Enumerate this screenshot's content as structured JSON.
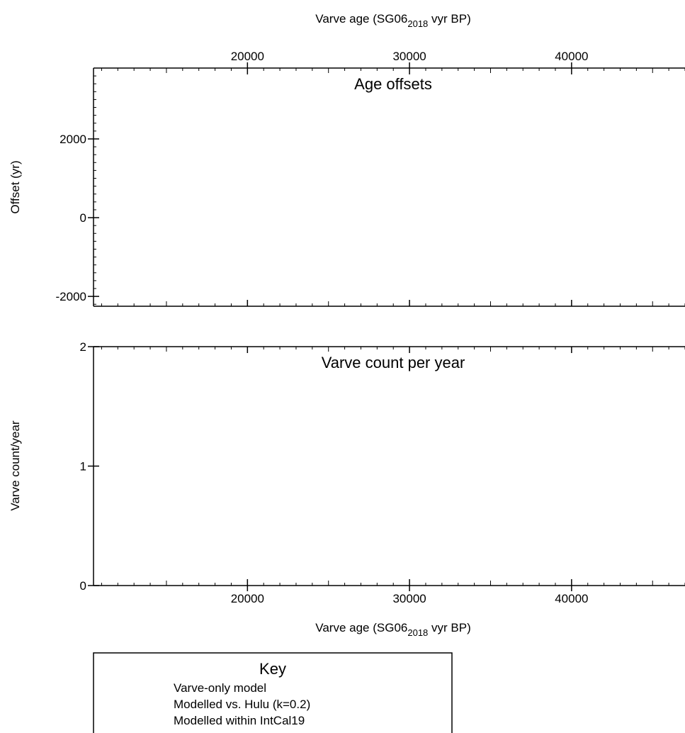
{
  "chart_data": [
    {
      "type": "line",
      "title": "Age offsets",
      "xlabel": "Varve age (SG06",
      "xlabel_sub": "2018",
      "xlabel_suffix": " vyr BP)",
      "ylabel": "Offset (yr)",
      "xlim": [
        10500,
        47000
      ],
      "ylim": [
        -2250,
        3800
      ],
      "xticks": [
        20000,
        30000,
        40000
      ],
      "yticks": [
        -2000,
        0,
        2000
      ],
      "x_axis_position": "top",
      "grid": false,
      "series": []
    },
    {
      "type": "line",
      "title": "Varve count per year",
      "xlabel": "Varve age (SG06",
      "xlabel_sub": "2018",
      "xlabel_suffix": " vyr BP)",
      "ylabel": "Varve count/year",
      "xlim": [
        10500,
        47000
      ],
      "ylim": [
        0,
        2
      ],
      "xticks": [
        20000,
        30000,
        40000
      ],
      "yticks": [
        0,
        1,
        2
      ],
      "x_axis_position": "bottom",
      "grid": false,
      "series": []
    }
  ],
  "legend": {
    "title": "Key",
    "items": [
      "Varve-only model",
      "Modelled vs. Hulu (k=0.2)",
      "Modelled within IntCal19"
    ],
    "placement": "bottom-left"
  }
}
